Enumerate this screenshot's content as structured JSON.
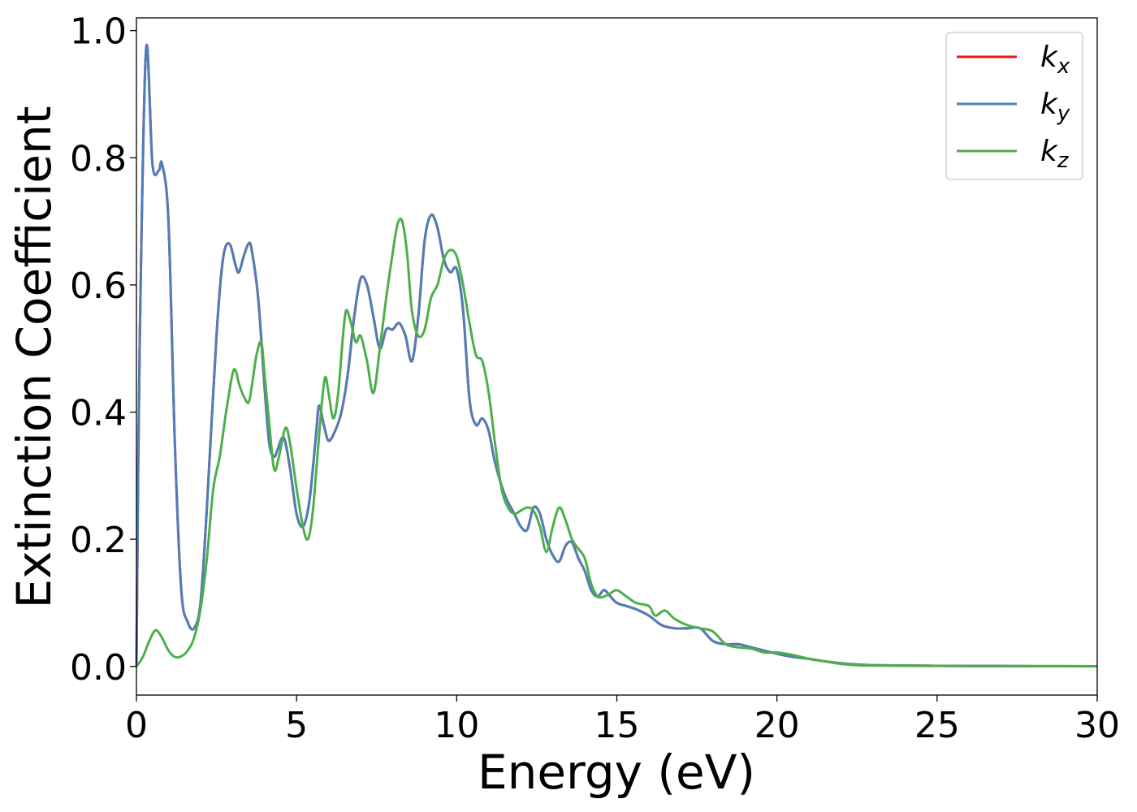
{
  "chart_data": {
    "type": "line",
    "xlabel": "Energy (eV)",
    "ylabel": "Extinction Coefficient",
    "xlim": [
      0,
      30
    ],
    "ylim": [
      -0.045,
      1.02
    ],
    "xticks": [
      0,
      5,
      10,
      15,
      20,
      25,
      30
    ],
    "xtick_labels": [
      "0",
      "5",
      "10",
      "15",
      "20",
      "25",
      "30"
    ],
    "yticks": [
      0.0,
      0.2,
      0.4,
      0.6,
      0.8,
      1.0
    ],
    "ytick_labels": [
      "0.0",
      "0.2",
      "0.4",
      "0.6",
      "0.8",
      "1.0"
    ],
    "grid": false,
    "legend_position": "top-right",
    "series": [
      {
        "name": "k_x",
        "legend_base": "k",
        "legend_sub": "x",
        "color": "#e41a1c",
        "x": [
          0,
          0.1,
          0.3,
          0.5,
          0.7,
          0.8,
          1.0,
          1.2,
          1.4,
          1.6,
          1.8,
          2.0,
          2.2,
          2.5,
          2.7,
          2.9,
          3.1,
          3.2,
          3.35,
          3.5,
          3.6,
          3.8,
          4.0,
          4.15,
          4.3,
          4.4,
          4.6,
          4.8,
          5.0,
          5.2,
          5.4,
          5.6,
          5.7,
          5.85,
          6.0,
          6.2,
          6.4,
          6.6,
          6.8,
          7.0,
          7.2,
          7.4,
          7.6,
          7.8,
          8.0,
          8.2,
          8.4,
          8.6,
          8.8,
          9.0,
          9.2,
          9.4,
          9.6,
          9.8,
          10.0,
          10.2,
          10.4,
          10.6,
          10.8,
          11.0,
          11.2,
          11.5,
          11.8,
          12.0,
          12.2,
          12.4,
          12.6,
          12.8,
          13.0,
          13.2,
          13.4,
          13.6,
          13.8,
          14.0,
          14.2,
          14.4,
          14.6,
          14.8,
          15.0,
          15.3,
          15.6,
          16.0,
          16.4,
          16.8,
          17.2,
          17.6,
          18.0,
          18.4,
          18.8,
          19.2,
          19.6,
          20.0,
          20.5,
          21.0,
          21.5,
          22.0,
          22.5,
          23.0,
          24.0,
          25.0,
          26.0,
          28.0,
          30.0
        ],
        "y": [
          0.0,
          0.5,
          0.97,
          0.79,
          0.78,
          0.79,
          0.7,
          0.35,
          0.12,
          0.07,
          0.06,
          0.1,
          0.25,
          0.52,
          0.64,
          0.665,
          0.63,
          0.62,
          0.645,
          0.665,
          0.655,
          0.58,
          0.44,
          0.35,
          0.33,
          0.34,
          0.36,
          0.31,
          0.24,
          0.22,
          0.26,
          0.36,
          0.41,
          0.38,
          0.355,
          0.37,
          0.4,
          0.46,
          0.55,
          0.61,
          0.6,
          0.55,
          0.5,
          0.53,
          0.53,
          0.54,
          0.52,
          0.48,
          0.55,
          0.67,
          0.71,
          0.69,
          0.64,
          0.62,
          0.625,
          0.56,
          0.42,
          0.38,
          0.39,
          0.37,
          0.32,
          0.27,
          0.24,
          0.22,
          0.215,
          0.25,
          0.24,
          0.2,
          0.175,
          0.165,
          0.19,
          0.195,
          0.17,
          0.15,
          0.12,
          0.11,
          0.12,
          0.11,
          0.1,
          0.095,
          0.09,
          0.08,
          0.065,
          0.06,
          0.06,
          0.06,
          0.04,
          0.035,
          0.035,
          0.03,
          0.025,
          0.02,
          0.015,
          0.012,
          0.008,
          0.005,
          0.003,
          0.002,
          0.0015,
          0.001,
          0.0008,
          0.0005,
          0.0003
        ]
      },
      {
        "name": "k_y",
        "legend_base": "k",
        "legend_sub": "y",
        "color": "#4e7fb8",
        "x": [
          0,
          0.1,
          0.3,
          0.5,
          0.7,
          0.8,
          1.0,
          1.2,
          1.4,
          1.6,
          1.8,
          2.0,
          2.2,
          2.5,
          2.7,
          2.9,
          3.1,
          3.2,
          3.35,
          3.5,
          3.6,
          3.8,
          4.0,
          4.15,
          4.3,
          4.4,
          4.6,
          4.8,
          5.0,
          5.2,
          5.4,
          5.6,
          5.7,
          5.85,
          6.0,
          6.2,
          6.4,
          6.6,
          6.8,
          7.0,
          7.2,
          7.4,
          7.6,
          7.8,
          8.0,
          8.2,
          8.4,
          8.6,
          8.8,
          9.0,
          9.2,
          9.4,
          9.6,
          9.8,
          10.0,
          10.2,
          10.4,
          10.6,
          10.8,
          11.0,
          11.2,
          11.5,
          11.8,
          12.0,
          12.2,
          12.4,
          12.6,
          12.8,
          13.0,
          13.2,
          13.4,
          13.6,
          13.8,
          14.0,
          14.2,
          14.4,
          14.6,
          14.8,
          15.0,
          15.3,
          15.6,
          16.0,
          16.4,
          16.8,
          17.2,
          17.6,
          18.0,
          18.4,
          18.8,
          19.2,
          19.6,
          20.0,
          20.5,
          21.0,
          21.5,
          22.0,
          22.5,
          23.0,
          24.0,
          25.0,
          26.0,
          28.0,
          30.0
        ],
        "y": [
          0.0,
          0.5,
          0.97,
          0.79,
          0.78,
          0.79,
          0.7,
          0.35,
          0.12,
          0.07,
          0.06,
          0.1,
          0.25,
          0.52,
          0.64,
          0.665,
          0.63,
          0.62,
          0.645,
          0.665,
          0.655,
          0.58,
          0.44,
          0.35,
          0.33,
          0.34,
          0.36,
          0.31,
          0.24,
          0.22,
          0.26,
          0.36,
          0.41,
          0.38,
          0.355,
          0.37,
          0.4,
          0.46,
          0.55,
          0.61,
          0.6,
          0.55,
          0.5,
          0.53,
          0.53,
          0.54,
          0.52,
          0.48,
          0.55,
          0.67,
          0.71,
          0.69,
          0.64,
          0.62,
          0.625,
          0.56,
          0.42,
          0.38,
          0.39,
          0.37,
          0.32,
          0.27,
          0.24,
          0.22,
          0.215,
          0.25,
          0.24,
          0.2,
          0.175,
          0.165,
          0.19,
          0.195,
          0.17,
          0.15,
          0.12,
          0.11,
          0.12,
          0.11,
          0.1,
          0.095,
          0.09,
          0.08,
          0.065,
          0.06,
          0.06,
          0.06,
          0.04,
          0.035,
          0.035,
          0.03,
          0.025,
          0.02,
          0.015,
          0.012,
          0.008,
          0.005,
          0.003,
          0.002,
          0.0015,
          0.001,
          0.0008,
          0.0005,
          0.0003
        ]
      },
      {
        "name": "k_z",
        "legend_base": "k",
        "legend_sub": "z",
        "color": "#4daf4a",
        "x": [
          0,
          0.2,
          0.4,
          0.6,
          0.8,
          1.0,
          1.2,
          1.4,
          1.6,
          1.8,
          2.0,
          2.2,
          2.4,
          2.6,
          2.8,
          3.0,
          3.1,
          3.2,
          3.35,
          3.5,
          3.6,
          3.75,
          3.9,
          4.0,
          4.15,
          4.3,
          4.45,
          4.65,
          4.8,
          5.0,
          5.2,
          5.35,
          5.5,
          5.65,
          5.8,
          5.9,
          6.0,
          6.15,
          6.3,
          6.45,
          6.55,
          6.7,
          6.85,
          7.0,
          7.2,
          7.4,
          7.6,
          7.8,
          8.0,
          8.15,
          8.3,
          8.45,
          8.6,
          8.8,
          9.0,
          9.2,
          9.4,
          9.6,
          9.8,
          10.0,
          10.2,
          10.4,
          10.6,
          10.8,
          11.0,
          11.2,
          11.4,
          11.6,
          11.8,
          12.0,
          12.2,
          12.4,
          12.6,
          12.8,
          13.0,
          13.2,
          13.4,
          13.6,
          13.8,
          14.0,
          14.2,
          14.4,
          14.6,
          14.8,
          15.0,
          15.3,
          15.6,
          16.0,
          16.2,
          16.5,
          16.8,
          17.2,
          17.6,
          18.0,
          18.4,
          18.8,
          19.2,
          19.6,
          20.0,
          20.5,
          21.0,
          21.5,
          22.0,
          22.5,
          23.0,
          24.0,
          25.0,
          26.0,
          28.0,
          30.0
        ],
        "y": [
          0.0,
          0.015,
          0.04,
          0.057,
          0.045,
          0.025,
          0.015,
          0.016,
          0.025,
          0.045,
          0.09,
          0.17,
          0.28,
          0.33,
          0.4,
          0.46,
          0.465,
          0.445,
          0.425,
          0.415,
          0.44,
          0.49,
          0.51,
          0.46,
          0.38,
          0.31,
          0.33,
          0.375,
          0.35,
          0.28,
          0.22,
          0.2,
          0.24,
          0.33,
          0.42,
          0.455,
          0.43,
          0.39,
          0.43,
          0.52,
          0.56,
          0.54,
          0.51,
          0.52,
          0.48,
          0.43,
          0.5,
          0.58,
          0.65,
          0.695,
          0.7,
          0.65,
          0.56,
          0.52,
          0.53,
          0.58,
          0.6,
          0.64,
          0.655,
          0.645,
          0.6,
          0.54,
          0.49,
          0.48,
          0.43,
          0.35,
          0.28,
          0.25,
          0.24,
          0.245,
          0.25,
          0.245,
          0.22,
          0.18,
          0.22,
          0.25,
          0.23,
          0.2,
          0.185,
          0.17,
          0.13,
          0.11,
          0.11,
          0.115,
          0.12,
          0.11,
          0.1,
          0.095,
          0.08,
          0.088,
          0.075,
          0.065,
          0.06,
          0.055,
          0.035,
          0.03,
          0.028,
          0.022,
          0.022,
          0.018,
          0.012,
          0.008,
          0.004,
          0.002,
          0.0015,
          0.001,
          0.0008,
          0.0005,
          0.0003,
          0.0002
        ]
      }
    ]
  }
}
